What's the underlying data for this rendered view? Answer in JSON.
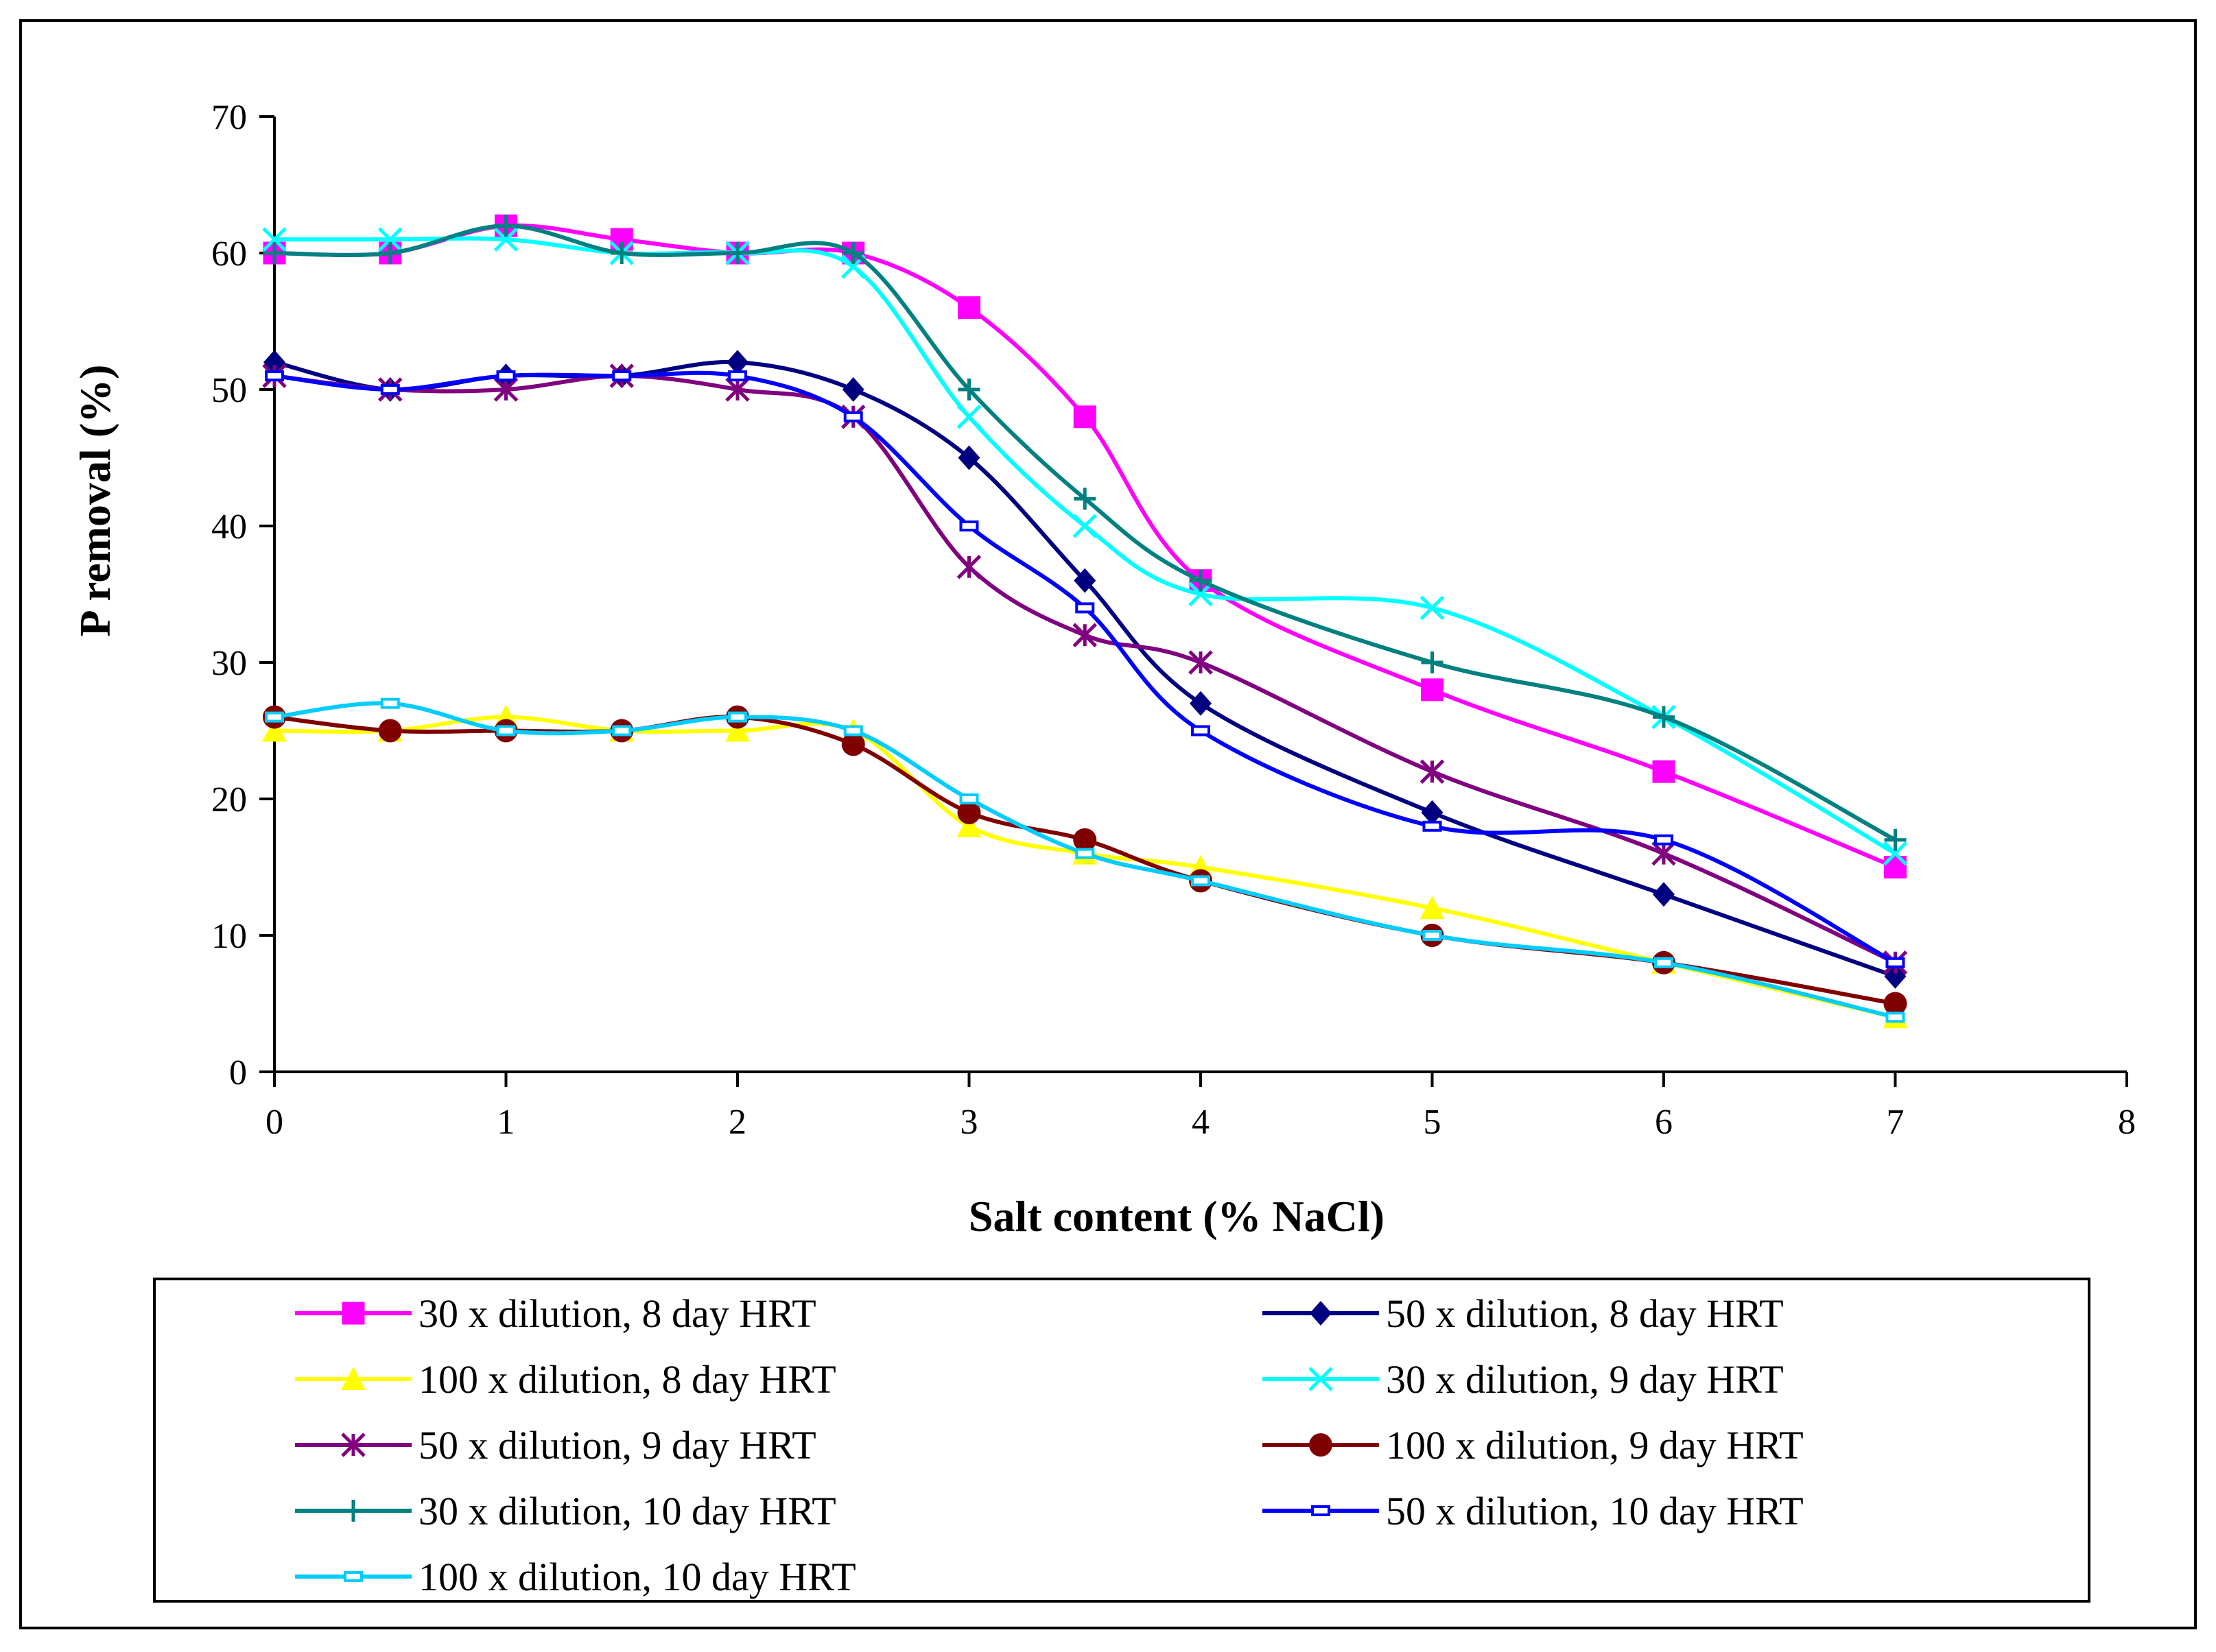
{
  "chart_data": {
    "type": "line",
    "title": "",
    "xlabel": "Salt content (% NaCl)",
    "ylabel": "P removal (%)",
    "xlim": [
      0,
      8
    ],
    "ylim": [
      0,
      70
    ],
    "xticks": [
      "0",
      "1",
      "2",
      "3",
      "4",
      "5",
      "6",
      "7",
      "8"
    ],
    "yticks": [
      "0",
      "10",
      "20",
      "30",
      "40",
      "50",
      "60",
      "70"
    ],
    "grid": false,
    "legend_position": "bottom",
    "x": [
      0,
      0.5,
      1,
      1.5,
      2,
      2.5,
      3,
      3.5,
      4,
      5,
      6,
      7
    ],
    "series": [
      {
        "name": "30 x dilution, 8 day HRT",
        "color": "#ff00ff",
        "marker": "square",
        "values": [
          60,
          60,
          62,
          61,
          60,
          60,
          56,
          48,
          36,
          28,
          22,
          15
        ]
      },
      {
        "name": "50 x dilution, 8 day HRT",
        "color": "#000080",
        "marker": "diamond",
        "values": [
          52,
          50,
          51,
          51,
          52,
          50,
          45,
          36,
          27,
          19,
          13,
          7
        ]
      },
      {
        "name": "100 x dilution, 8 day HRT",
        "color": "#ffff00",
        "marker": "triangle",
        "values": [
          25,
          25,
          26,
          25,
          25,
          25,
          18,
          16,
          15,
          12,
          8,
          4
        ]
      },
      {
        "name": "30 x dilution, 9 day HRT",
        "color": "#00ffff",
        "marker": "x",
        "values": [
          61,
          61,
          61,
          60,
          60,
          59,
          48,
          40,
          35,
          34,
          26,
          16
        ]
      },
      {
        "name": "50 x dilution, 9 day HRT",
        "color": "#800080",
        "marker": "star",
        "values": [
          51,
          50,
          50,
          51,
          50,
          48,
          37,
          32,
          30,
          22,
          16,
          8
        ]
      },
      {
        "name": "100 x dilution, 9 day HRT",
        "color": "#800000",
        "marker": "circle",
        "values": [
          26,
          25,
          25,
          25,
          26,
          24,
          19,
          17,
          14,
          10,
          8,
          5
        ]
      },
      {
        "name": "30 x dilution, 10 day HRT",
        "color": "#008080",
        "marker": "plus",
        "values": [
          60,
          60,
          62,
          60,
          60,
          60,
          50,
          42,
          36,
          30,
          26,
          17
        ]
      },
      {
        "name": "50 x dilution, 10 day HRT",
        "color": "#0000ff",
        "marker": "dash",
        "values": [
          51,
          50,
          51,
          51,
          51,
          48,
          40,
          34,
          25,
          18,
          17,
          8
        ]
      },
      {
        "name": "100 x dilution, 10 day HRT",
        "color": "#00ccff",
        "marker": "dash",
        "values": [
          26,
          27,
          25,
          25,
          26,
          25,
          20,
          16,
          14,
          10,
          8,
          4
        ]
      }
    ]
  }
}
